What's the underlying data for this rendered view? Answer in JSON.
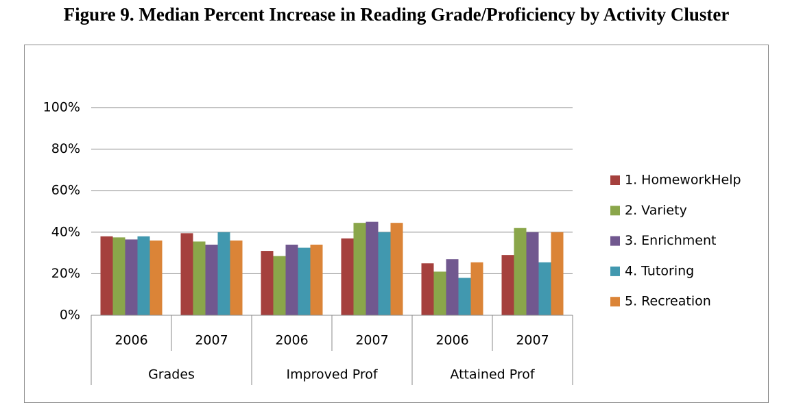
{
  "chart_data": {
    "type": "bar",
    "title": "Figure 9. Median Percent Increase in Reading Grade/Proficiency by Activity Cluster",
    "groups": [
      {
        "name": "Grades",
        "categories": [
          "2006",
          "2007"
        ]
      },
      {
        "name": "Improved Prof",
        "categories": [
          "2006",
          "2007"
        ]
      },
      {
        "name": "Attained Prof",
        "categories": [
          "2006",
          "2007"
        ]
      }
    ],
    "series": [
      {
        "name": "1. HomeworkHelp",
        "color": "#a5403d",
        "values": [
          38,
          39.5,
          31,
          37,
          25,
          29
        ]
      },
      {
        "name": "2. Variety",
        "color": "#8aa64a",
        "values": [
          37.5,
          35.5,
          28.5,
          44.5,
          21,
          42
        ]
      },
      {
        "name": "3. Enrichment",
        "color": "#71588f",
        "values": [
          36.5,
          34,
          34,
          45,
          27,
          40
        ]
      },
      {
        "name": "4. Tutoring",
        "color": "#4198af",
        "values": [
          38,
          40,
          32.5,
          40,
          18,
          25.5
        ]
      },
      {
        "name": "5. Recreation",
        "color": "#db8437",
        "values": [
          36,
          36,
          34,
          44.5,
          25.5,
          40
        ]
      }
    ],
    "ylim": [
      0,
      100
    ],
    "yticks": [
      {
        "value": 0,
        "label": "0%"
      },
      {
        "value": 20,
        "label": "20%"
      },
      {
        "value": 40,
        "label": "40%"
      },
      {
        "value": 60,
        "label": "60%"
      },
      {
        "value": 80,
        "label": "80%"
      },
      {
        "value": 100,
        "label": "100%"
      }
    ],
    "grid": true,
    "legend": "right"
  }
}
